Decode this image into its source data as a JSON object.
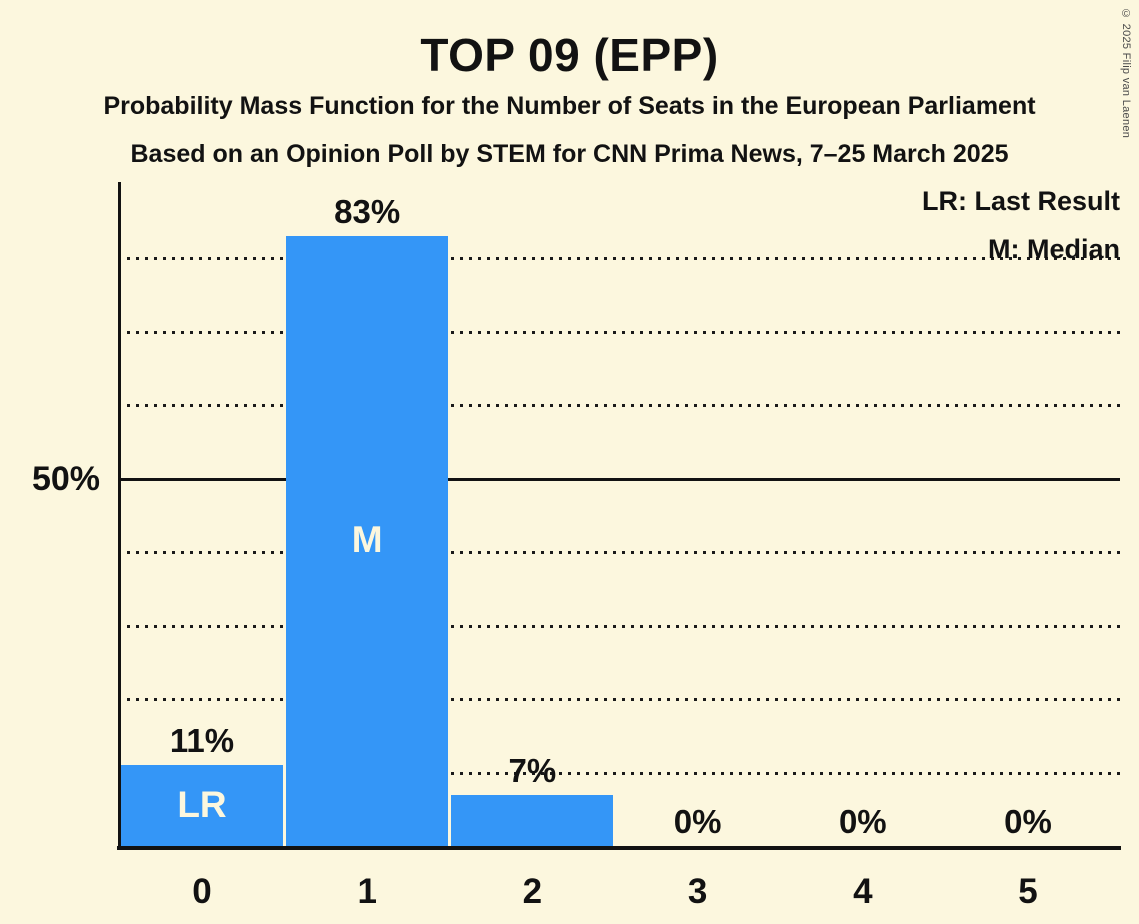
{
  "title": "TOP 09 (EPP)",
  "subtitle_line1": "Probability Mass Function for the Number of Seats in the European Parliament",
  "subtitle_line2": "Based on an Opinion Poll by STEM for CNN Prima News, 7–25 March 2025",
  "copyright": "© 2025 Filip van Laenen",
  "legend": {
    "last_result": "LR: Last Result",
    "median": "M: Median"
  },
  "y_axis": {
    "tick_label": "50%",
    "tick_value": 50
  },
  "chart_data": {
    "type": "bar",
    "title": "TOP 09 (EPP)",
    "categories": [
      "0",
      "1",
      "2",
      "3",
      "4",
      "5"
    ],
    "values": [
      11,
      83,
      7,
      0,
      0,
      0
    ],
    "value_labels": [
      "11%",
      "83%",
      "7%",
      "0%",
      "0%",
      "0%"
    ],
    "bar_annotations": [
      "LR",
      "M",
      "",
      "",
      "",
      ""
    ],
    "xlabel": "",
    "ylabel": "",
    "ylim": [
      0,
      90
    ],
    "grid": "horizontal-dotted",
    "gridlines_dotted_pct": [
      10,
      20,
      30,
      40,
      60,
      70,
      80
    ],
    "gridline_solid_pct": 50,
    "legend_position": "top-right",
    "colors": {
      "bar": "#3496F7",
      "background": "#FCF7DE",
      "text": "#121212",
      "bar_inner_text": "#FCF7DE"
    }
  }
}
